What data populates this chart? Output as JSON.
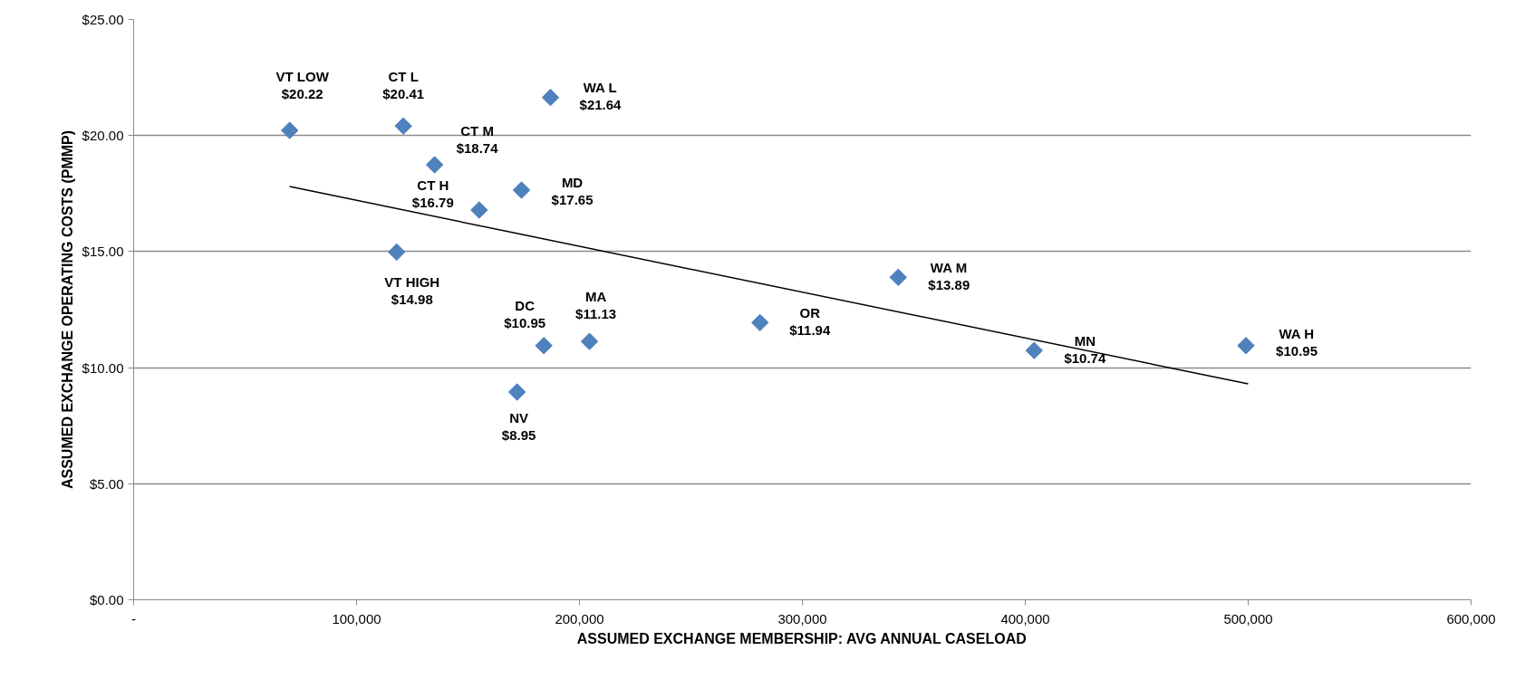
{
  "chart_data": {
    "type": "scatter",
    "xlabel": "ASSUMED EXCHANGE MEMBERSHIP: AVG ANNUAL CASELOAD",
    "ylabel": "ASSUMED EXCHANGE OPERATING COSTS (PMMP)",
    "xlim": [
      0,
      600000
    ],
    "xticks": [
      {
        "value": 0,
        "label": "-"
      },
      {
        "value": 100000,
        "label": "100,000"
      },
      {
        "value": 200000,
        "label": "200,000"
      },
      {
        "value": 300000,
        "label": "300,000"
      },
      {
        "value": 400000,
        "label": "400,000"
      },
      {
        "value": 500000,
        "label": "500,000"
      },
      {
        "value": 600000,
        "label": "600,000"
      }
    ],
    "ylim": [
      0,
      25
    ],
    "yticks": [
      {
        "value": 0,
        "label": "$0.00"
      },
      {
        "value": 5,
        "label": "$5.00"
      },
      {
        "value": 10,
        "label": "$10.00"
      },
      {
        "value": 15,
        "label": "$15.00"
      },
      {
        "value": 20,
        "label": "$20.00"
      },
      {
        "value": 25,
        "label": "$25.00"
      }
    ],
    "grid": "y",
    "marker": "diamond",
    "series": [
      {
        "color": "#4f81bd",
        "x": [
          70000,
          121000,
          135000,
          155000,
          174000,
          187000,
          118000,
          184000,
          204500,
          172000,
          281000,
          343000,
          404000,
          499000
        ],
        "values": [
          20.22,
          20.41,
          18.74,
          16.79,
          17.65,
          21.64,
          14.98,
          10.95,
          11.13,
          8.95,
          11.94,
          13.89,
          10.74,
          10.95
        ]
      },
      {
        "type": "line",
        "marker": "none",
        "color": "#000000",
        "x": [
          70000,
          500000
        ],
        "values": [
          17.8,
          9.3
        ]
      }
    ],
    "annotations": [
      {
        "text": "VT LOW\n$20.22",
        "x": 70000,
        "y": 20.22
      },
      {
        "text": "CT L\n$20.41",
        "x": 121000,
        "y": 20.41
      },
      {
        "text": "CT M\n$18.74",
        "x": 135000,
        "y": 18.74
      },
      {
        "text": "CT H\n$16.79",
        "x": 155000,
        "y": 16.79
      },
      {
        "text": "MD\n$17.65",
        "x": 174000,
        "y": 17.65
      },
      {
        "text": "WA L\n$21.64",
        "x": 187000,
        "y": 21.64
      },
      {
        "text": "VT HIGH\n$14.98",
        "x": 118000,
        "y": 14.98
      },
      {
        "text": "DC\n$10.95",
        "x": 184000,
        "y": 10.95
      },
      {
        "text": "MA\n$11.13",
        "x": 204500,
        "y": 11.13
      },
      {
        "text": "NV\n$8.95",
        "x": 172000,
        "y": 8.95
      },
      {
        "text": "OR\n$11.94",
        "x": 281000,
        "y": 11.94
      },
      {
        "text": "WA M\n$13.89",
        "x": 343000,
        "y": 13.89
      },
      {
        "text": "MN\n$10.74",
        "x": 404000,
        "y": 10.74
      },
      {
        "text": "WA H\n$10.95",
        "x": 499000,
        "y": 10.95
      }
    ]
  }
}
